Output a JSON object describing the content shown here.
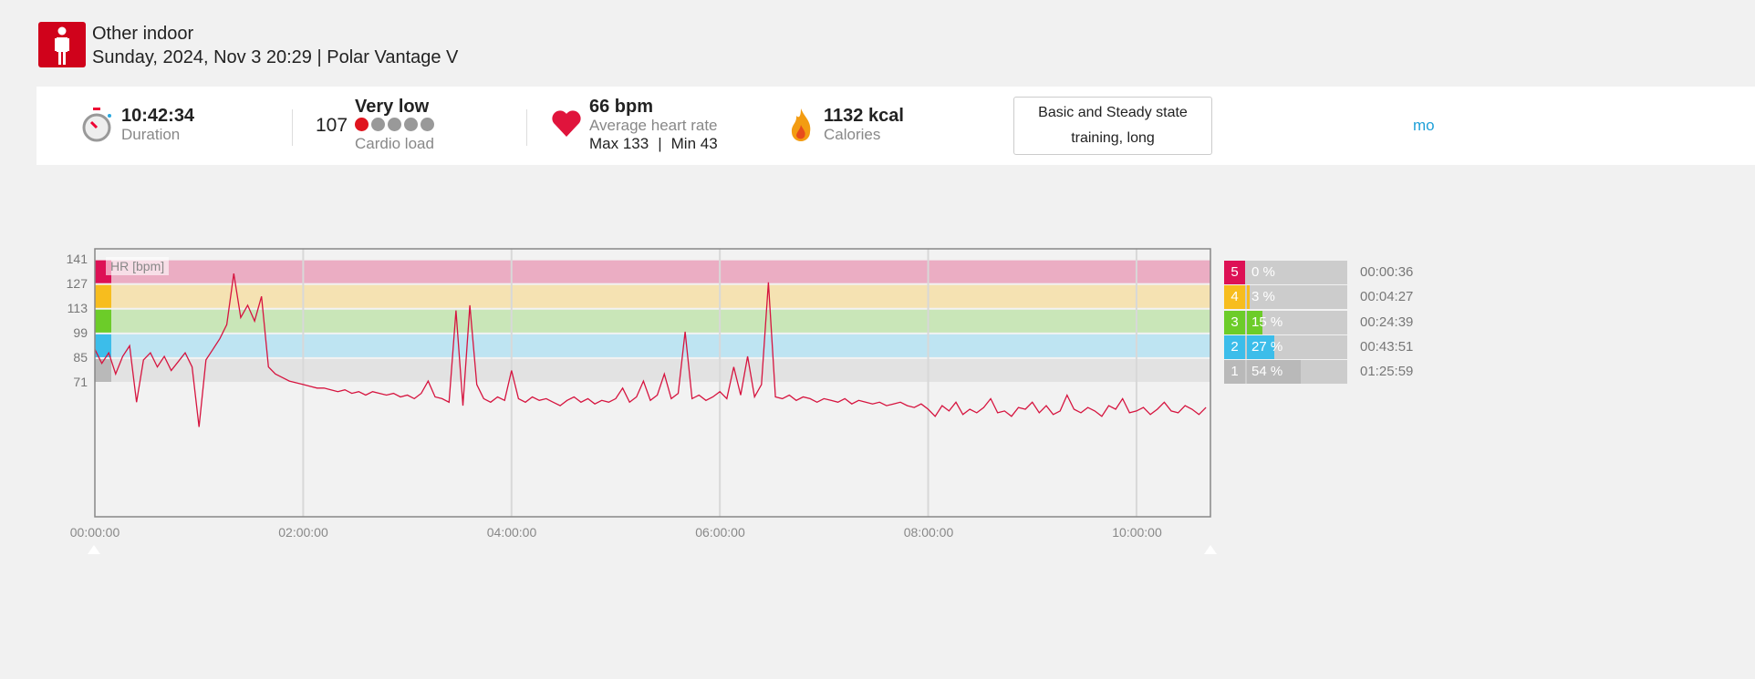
{
  "header": {
    "sport": "Other indoor",
    "date_device": "Sunday, 2024, Nov 3 20:29 | Polar Vantage V"
  },
  "stats": {
    "duration": {
      "value": "10:42:34",
      "label": "Duration"
    },
    "cardio": {
      "value": "107",
      "level": "Very low",
      "label": "Cardio load",
      "level_dots_filled": 1,
      "level_dots_total": 5
    },
    "hr": {
      "value": "66 bpm",
      "label": "Average heart rate",
      "max": "Max 133",
      "sep": "|",
      "min": "Min 43"
    },
    "calories": {
      "value": "1132 kcal",
      "label": "Calories"
    },
    "benefit": "Basic and Steady state training, long",
    "more": "mo"
  },
  "colors": {
    "z5": "#dd1155",
    "z4": "#f7bd1e",
    "z3": "#6ccc29",
    "z2": "#3cbdea",
    "z1": "#b9b9b9",
    "line": "#d6143f"
  },
  "chart_data": {
    "type": "line",
    "legend_label": "HR [bpm]",
    "y_ticks": [
      141,
      127,
      113,
      99,
      85,
      71
    ],
    "ylim": [
      -5,
      147
    ],
    "x_ticks": [
      "00:00:00",
      "02:00:00",
      "04:00:00",
      "06:00:00",
      "08:00:00",
      "10:00:00"
    ],
    "xlim_hours": [
      0,
      10.71
    ],
    "zones": [
      {
        "zone": 5,
        "from": 127,
        "to": 141
      },
      {
        "zone": 4,
        "from": 113,
        "to": 127
      },
      {
        "zone": 3,
        "from": 99,
        "to": 113
      },
      {
        "zone": 2,
        "from": 85,
        "to": 99
      },
      {
        "zone": 1,
        "from": 71,
        "to": 85
      }
    ],
    "interval_min": 4,
    "hr_bpm": [
      90,
      82,
      88,
      76,
      86,
      92,
      60,
      84,
      88,
      80,
      86,
      78,
      83,
      88,
      80,
      46,
      84,
      90,
      96,
      104,
      133,
      108,
      115,
      106,
      120,
      80,
      76,
      74,
      72,
      71,
      70,
      69,
      68,
      68,
      67,
      66,
      67,
      65,
      66,
      64,
      66,
      65,
      64,
      65,
      63,
      64,
      62,
      65,
      72,
      63,
      62,
      60,
      112,
      58,
      115,
      70,
      62,
      60,
      63,
      61,
      78,
      62,
      60,
      63,
      61,
      62,
      60,
      58,
      61,
      63,
      60,
      62,
      59,
      61,
      60,
      62,
      68,
      60,
      63,
      72,
      61,
      64,
      76,
      62,
      65,
      100,
      62,
      64,
      61,
      63,
      66,
      62,
      80,
      64,
      86,
      63,
      70,
      128,
      63,
      62,
      64,
      61,
      63,
      62,
      60,
      62,
      61,
      60,
      62,
      59,
      61,
      60,
      59,
      60,
      58,
      59,
      60,
      58,
      57,
      59,
      56,
      52,
      58,
      55,
      60,
      53,
      56,
      54,
      57,
      62,
      54,
      55,
      52,
      57,
      56,
      60,
      54,
      58,
      53,
      55,
      64,
      56,
      54,
      57,
      55,
      52,
      58,
      56,
      62,
      54,
      55,
      57,
      53,
      56,
      60,
      55,
      54,
      58,
      56,
      53,
      57
    ]
  },
  "zone_table": [
    {
      "zone": "5",
      "percent": "0 %",
      "pct": 0,
      "time": "00:00:36"
    },
    {
      "zone": "4",
      "percent": "3 %",
      "pct": 3,
      "time": "00:04:27"
    },
    {
      "zone": "3",
      "percent": "15 %",
      "pct": 15,
      "time": "00:24:39"
    },
    {
      "zone": "2",
      "percent": "27 %",
      "pct": 27,
      "time": "00:43:51"
    },
    {
      "zone": "1",
      "percent": "54 %",
      "pct": 54,
      "time": "01:25:59"
    }
  ]
}
